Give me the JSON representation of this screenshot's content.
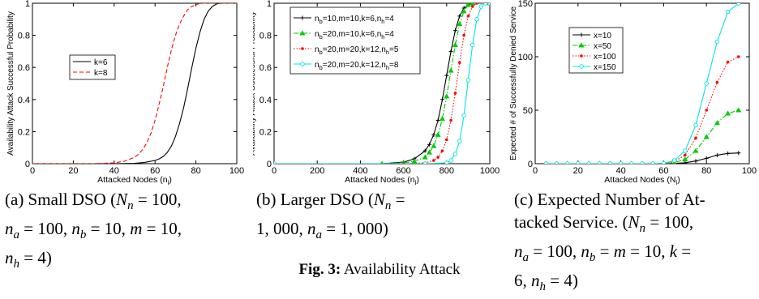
{
  "chart_data": [
    {
      "type": "line",
      "xlabel": "Attacked Nodes (n",
      "xlabel_sub": "i",
      "ylabel": "Availability Attack Successful Probability",
      "xlim": [
        0,
        100
      ],
      "ylim": [
        0,
        1
      ],
      "xticks": [
        "0",
        "20",
        "40",
        "60",
        "80",
        "100"
      ],
      "yticks": [
        "0",
        "0.2",
        "0.4",
        "0.6",
        "0.8",
        "1"
      ],
      "legend": "center-right",
      "series": [
        {
          "name": "k=6",
          "color": "#000000",
          "dash": "solid",
          "x": [
            0,
            40,
            50,
            55,
            60,
            62,
            64,
            66,
            68,
            70,
            72,
            74,
            76,
            78,
            80,
            82,
            84,
            86,
            88,
            90,
            92,
            94,
            100
          ],
          "y": [
            0,
            0,
            0.002,
            0.008,
            0.02,
            0.03,
            0.045,
            0.07,
            0.11,
            0.17,
            0.25,
            0.35,
            0.47,
            0.6,
            0.72,
            0.82,
            0.9,
            0.95,
            0.98,
            0.995,
            1,
            1,
            1
          ]
        },
        {
          "name": "k=8",
          "color": "#ff0000",
          "dash": "dashed",
          "x": [
            0,
            30,
            40,
            45,
            50,
            52,
            54,
            56,
            58,
            60,
            62,
            64,
            66,
            68,
            70,
            72,
            74,
            76,
            78,
            80,
            82,
            84,
            86,
            88,
            90,
            100
          ],
          "y": [
            0,
            0,
            0.005,
            0.015,
            0.04,
            0.06,
            0.09,
            0.13,
            0.19,
            0.27,
            0.37,
            0.48,
            0.6,
            0.71,
            0.8,
            0.87,
            0.92,
            0.96,
            0.98,
            0.99,
            1,
            1,
            1,
            1,
            1,
            1
          ]
        }
      ]
    },
    {
      "type": "line",
      "xlabel": "Attacked Nodes (n",
      "xlabel_sub": "i",
      "ylabel": "Availability Attack Successful Probability",
      "xlim": [
        0,
        1000
      ],
      "ylim": [
        0,
        1
      ],
      "xticks": [
        "0",
        "200",
        "400",
        "600",
        "800",
        "1000"
      ],
      "yticks": [
        "0",
        "0.2",
        "0.4",
        "0.6",
        "0.8",
        "1"
      ],
      "legend": "top-left",
      "series": [
        {
          "label_parts": [
            "n",
            "b",
            "=10,m=10,k=6,n",
            "h",
            "=4"
          ],
          "color": "#000000",
          "marker": "plus",
          "dash": "solid",
          "x": [
            0,
            500,
            600,
            650,
            700,
            720,
            740,
            760,
            780,
            800,
            820,
            840,
            860,
            880,
            900,
            920,
            1000
          ],
          "y": [
            0,
            0,
            0.01,
            0.03,
            0.08,
            0.12,
            0.18,
            0.27,
            0.4,
            0.55,
            0.7,
            0.83,
            0.92,
            0.97,
            0.99,
            1,
            1
          ]
        },
        {
          "label_parts": [
            "n",
            "b",
            "=20,m=10,k=6,n",
            "h",
            "=4"
          ],
          "color": "#00cc00",
          "marker": "triangle",
          "dash": "dashdot",
          "x": [
            0,
            500,
            600,
            650,
            700,
            720,
            740,
            760,
            780,
            800,
            820,
            840,
            860,
            880,
            900,
            920,
            1000
          ],
          "y": [
            0,
            0,
            0.005,
            0.015,
            0.04,
            0.07,
            0.11,
            0.18,
            0.28,
            0.42,
            0.58,
            0.74,
            0.87,
            0.95,
            0.99,
            1,
            1
          ]
        },
        {
          "label_parts": [
            "n",
            "b",
            "=20,m=20,k=12,n",
            "h",
            "=5"
          ],
          "color": "#ff0000",
          "marker": "dot",
          "dash": "dotted",
          "x": [
            0,
            600,
            700,
            740,
            760,
            780,
            800,
            820,
            840,
            860,
            880,
            900,
            920,
            940,
            1000
          ],
          "y": [
            0,
            0,
            0.005,
            0.02,
            0.04,
            0.08,
            0.15,
            0.27,
            0.44,
            0.63,
            0.8,
            0.92,
            0.98,
            1,
            1
          ]
        },
        {
          "label_parts": [
            "n",
            "b",
            "=20,m=20,k=12,n",
            "h",
            "=8"
          ],
          "color": "#00e5e5",
          "marker": "circle",
          "dash": "solid",
          "x": [
            0,
            700,
            800,
            820,
            840,
            860,
            880,
            900,
            920,
            940,
            960,
            980,
            1000
          ],
          "y": [
            0,
            0,
            0.005,
            0.02,
            0.06,
            0.14,
            0.3,
            0.52,
            0.74,
            0.9,
            0.98,
            1,
            1
          ]
        }
      ]
    },
    {
      "type": "line",
      "xlabel": "Attacked Nodes (N",
      "xlabel_sub": "i",
      "ylabel": "Expected # of Successfully Denied Service",
      "xlim": [
        0,
        100
      ],
      "ylim": [
        0,
        150
      ],
      "xticks": [
        "0",
        "20",
        "40",
        "60",
        "80",
        "100"
      ],
      "yticks": [
        "0",
        "50",
        "100",
        "150"
      ],
      "legend": "top-left",
      "series": [
        {
          "name": "x=10",
          "color": "#000000",
          "marker": "plus",
          "dash": "solid",
          "x": [
            5,
            10,
            15,
            20,
            25,
            30,
            35,
            40,
            45,
            50,
            55,
            60,
            65,
            70,
            75,
            80,
            85,
            90,
            95
          ],
          "y": [
            0,
            0,
            0,
            0,
            0,
            0,
            0,
            0,
            0,
            0,
            0,
            0.02,
            0.2,
            0.8,
            2.5,
            5,
            8,
            9.6,
            10
          ]
        },
        {
          "name": "x=50",
          "color": "#00cc00",
          "marker": "triangle",
          "dash": "dashdot",
          "x": [
            5,
            10,
            15,
            20,
            25,
            30,
            35,
            40,
            45,
            50,
            55,
            60,
            65,
            70,
            75,
            80,
            85,
            90,
            95
          ],
          "y": [
            0,
            0,
            0,
            0,
            0,
            0,
            0,
            0,
            0,
            0,
            0,
            0.1,
            1,
            4,
            12,
            25,
            38,
            47,
            50
          ]
        },
        {
          "name": "x=100",
          "color": "#ff0000",
          "marker": "dot",
          "dash": "dotted",
          "x": [
            5,
            10,
            15,
            20,
            25,
            30,
            35,
            40,
            45,
            50,
            55,
            60,
            65,
            70,
            75,
            80,
            85,
            90,
            95
          ],
          "y": [
            0,
            0,
            0,
            0,
            0,
            0,
            0,
            0,
            0,
            0,
            0,
            0.2,
            2,
            8,
            24,
            50,
            76,
            95,
            100
          ]
        },
        {
          "name": "x=150",
          "color": "#00e5e5",
          "marker": "circle",
          "dash": "solid",
          "x": [
            5,
            10,
            15,
            20,
            25,
            30,
            35,
            40,
            45,
            50,
            55,
            60,
            65,
            70,
            75,
            80,
            85,
            90,
            95
          ],
          "y": [
            0,
            0,
            0,
            0,
            0,
            0,
            0,
            0,
            0,
            0,
            0,
            0.3,
            3,
            12,
            36,
            75,
            114,
            142,
            150
          ]
        }
      ]
    }
  ],
  "captions": [
    {
      "tag": "(a)",
      "parts": [
        "(a) Small DSO (",
        "N",
        "n",
        " = 100,",
        "n",
        "a",
        " = 100, ",
        "n",
        "b",
        " = 10, ",
        "m",
        " = 10,",
        "n",
        "h",
        " = 4)"
      ]
    },
    {
      "tag": "(b)",
      "parts": [
        "(b) Larger DSO (",
        "N",
        "n",
        " =",
        "1, 000, ",
        "n",
        "a",
        " = 1, 000)"
      ]
    },
    {
      "tag": "(c)",
      "parts": [
        "(c) Expected Number of At-",
        "tacked Service. (",
        "N",
        "n",
        " = 100,",
        "n",
        "a",
        " = 100, ",
        "n",
        "b",
        " = ",
        "m",
        " = 10, ",
        "k",
        " =",
        "6, ",
        "n",
        "h",
        " = 4)"
      ]
    }
  ],
  "figure_caption": "Fig. 3: Availability Attack"
}
